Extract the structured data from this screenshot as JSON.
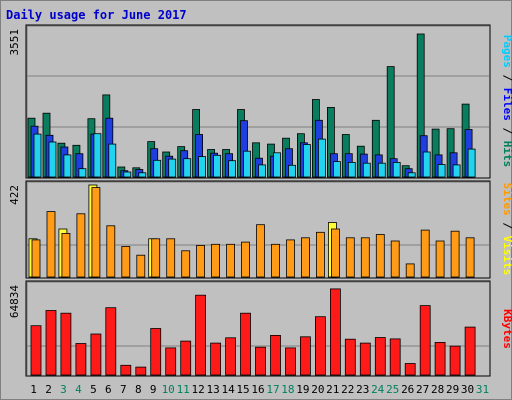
{
  "chart_data": {
    "type": "bar",
    "title": "Daily usage for June 2017",
    "categories": [
      "1",
      "2",
      "3",
      "4",
      "5",
      "6",
      "7",
      "8",
      "9",
      "10",
      "11",
      "12",
      "13",
      "14",
      "15",
      "16",
      "17",
      "18",
      "19",
      "20",
      "21",
      "22",
      "23",
      "24",
      "25",
      "26",
      "27",
      "28",
      "29",
      "30",
      "31"
    ],
    "weekend_days": [
      "3",
      "4",
      "10",
      "11",
      "17",
      "18",
      "24",
      "25",
      "31"
    ],
    "panels": [
      {
        "id": "hits",
        "ymax_label": "3551",
        "ymax": 3551,
        "legend": [
          {
            "text": "Pages",
            "color": "#00ccff"
          },
          {
            "text": "Files",
            "color": "#0000ff"
          },
          {
            "text": "Hits",
            "color": "#00805c"
          }
        ],
        "series": [
          {
            "name": "Hits",
            "color": "#0a7d5e",
            "values": [
              1410,
              1530,
              810,
              760,
              1400,
              1970,
              240,
              220,
              850,
              600,
              730,
              1620,
              660,
              660,
              1620,
              820,
              790,
              930,
              1040,
              1860,
              1670,
              1020,
              740,
              1360,
              2650,
              270,
              3430,
              1150,
              1160,
              1750,
              0
            ]
          },
          {
            "name": "Files",
            "color": "#1f3ee0",
            "values": [
              1220,
              1000,
              720,
              560,
              1030,
              1410,
              150,
              180,
              680,
              500,
              630,
              1020,
              570,
              560,
              1350,
              450,
              500,
              680,
              820,
              1360,
              560,
              560,
              550,
              530,
              440,
              200,
              990,
              530,
              580,
              1140,
              0
            ]
          },
          {
            "name": "Pages",
            "color": "#22d3f0",
            "values": [
              1030,
              840,
              530,
              200,
              1040,
              790,
              120,
              100,
              400,
              430,
              440,
              490,
              520,
              390,
              620,
              290,
              580,
              280,
              780,
              910,
              370,
              350,
              330,
              330,
              350,
              100,
              600,
              300,
              290,
              670,
              0
            ]
          }
        ]
      },
      {
        "id": "visits",
        "ymax_label": "422",
        "ymax": 422,
        "legend": [
          {
            "text": "Sites",
            "color": "#ff9900"
          },
          {
            "text": "Visits",
            "color": "#ffff00"
          }
        ],
        "series": [
          {
            "name": "Visits",
            "color": "#ffff33",
            "values": [
              175,
              0,
              220,
              0,
              422,
              0,
              0,
              0,
              175,
              0,
              0,
              0,
              0,
              0,
              0,
              0,
              0,
              0,
              0,
              0,
              250,
              0,
              0,
              0,
              0,
              0,
              0,
              0,
              0,
              0,
              0
            ]
          },
          {
            "name": "Sites",
            "color": "#ff9b17",
            "values": [
              170,
              300,
              200,
              290,
              410,
              235,
              140,
              100,
              175,
              175,
              120,
              145,
              150,
              150,
              160,
              240,
              150,
              170,
              180,
              205,
              220,
              180,
              180,
              195,
              165,
              60,
              215,
              165,
              210,
              180,
              0
            ]
          }
        ]
      },
      {
        "id": "kbytes",
        "ymax_label": "64834",
        "ymax": 64834,
        "legend": [
          {
            "text": "KBytes",
            "color": "#ff0000"
          }
        ],
        "series": [
          {
            "name": "KBytes",
            "color": "#ff1a1a",
            "values": [
              35500,
              46500,
              44500,
              22700,
              29500,
              48500,
              7000,
              5700,
              33500,
              19500,
              24400,
              57500,
              23000,
              26800,
              44500,
              20000,
              28500,
              19500,
              27500,
              42000,
              62000,
              25800,
              23000,
              27000,
              26000,
              8300,
              50000,
              23500,
              20800,
              34500,
              0
            ]
          }
        ]
      }
    ]
  }
}
